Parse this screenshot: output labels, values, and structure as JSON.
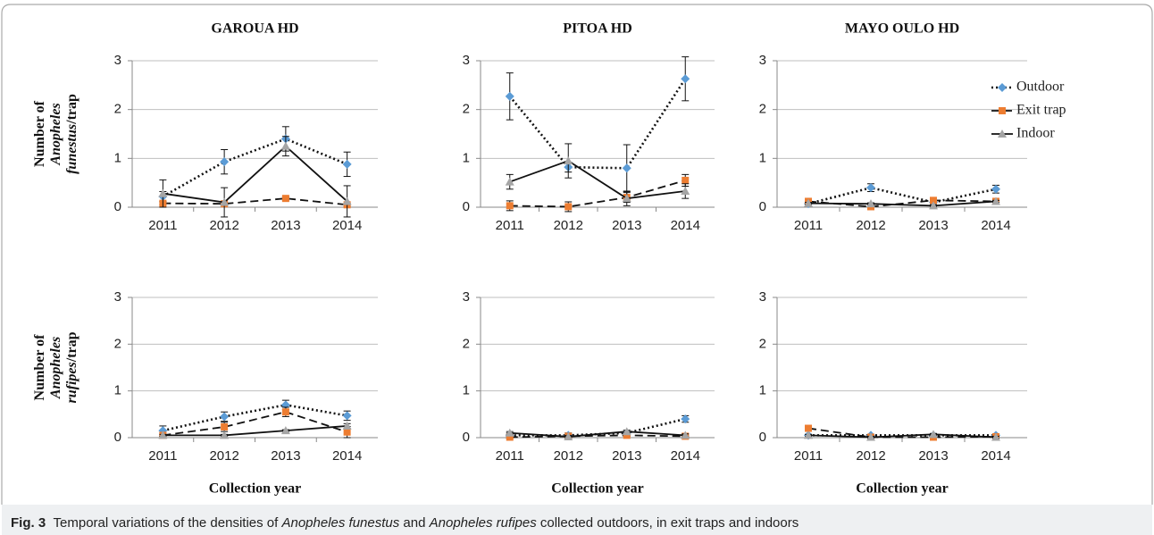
{
  "chart_data": [
    {
      "type": "line",
      "title": "GAROUA HD",
      "ylabel": [
        "Number of",
        "Anopheles",
        "funestus",
        "/trap"
      ],
      "categories": [
        "2011",
        "2012",
        "2013",
        "2014"
      ],
      "ylim": [
        0,
        3
      ],
      "yticks": [
        0,
        1,
        2,
        3
      ],
      "grid": true,
      "series": [
        {
          "color": "#5b9bd5",
          "marker": "diamond",
          "line_style": "dotted",
          "values": [
            0.22,
            0.93,
            1.4,
            0.88
          ],
          "errors": [
            0.1,
            0.25,
            0.25,
            0.25
          ]
        },
        {
          "color": "#ed7d31",
          "marker": "square",
          "line_style": "dashed",
          "values": [
            0.08,
            0.07,
            0.18,
            0.05
          ],
          "errors": [
            0.03,
            0.03,
            0.03,
            0.03
          ]
        },
        {
          "color": "#a5a5a5",
          "marker": "triangle",
          "line_style": "solid",
          "values": [
            0.28,
            0.1,
            1.25,
            0.12
          ],
          "errors": [
            0.28,
            0.3,
            0.2,
            0.32
          ]
        }
      ]
    },
    {
      "type": "line",
      "title": "PITOA HD",
      "categories": [
        "2011",
        "2012",
        "2013",
        "2014"
      ],
      "ylim": [
        0,
        3
      ],
      "yticks": [
        0,
        1,
        2,
        3
      ],
      "grid": true,
      "series": [
        {
          "color": "#5b9bd5",
          "marker": "diamond",
          "line_style": "dotted",
          "values": [
            2.27,
            0.82,
            0.8,
            2.63
          ],
          "errors": [
            0.48,
            0.1,
            0.48,
            0.45
          ]
        },
        {
          "color": "#ed7d31",
          "marker": "square",
          "line_style": "dashed",
          "values": [
            0.03,
            0.01,
            0.2,
            0.55
          ],
          "errors": [
            0.1,
            0.1,
            0.1,
            0.12
          ]
        },
        {
          "color": "#a5a5a5",
          "marker": "triangle",
          "line_style": "solid",
          "values": [
            0.52,
            0.95,
            0.18,
            0.33
          ],
          "errors": [
            0.15,
            0.35,
            0.15,
            0.15
          ]
        }
      ]
    },
    {
      "type": "line",
      "title": "MAYO OULO HD",
      "legend": "upper right",
      "categories": [
        "2011",
        "2012",
        "2013",
        "2014"
      ],
      "ylim": [
        0,
        3
      ],
      "yticks": [
        0,
        1,
        2,
        3
      ],
      "grid": true,
      "series": [
        {
          "name": "Outdoor",
          "color": "#5b9bd5",
          "marker": "diamond",
          "line_style": "dotted",
          "values": [
            0.07,
            0.4,
            0.1,
            0.37
          ],
          "errors": [
            0.02,
            0.08,
            0.05,
            0.08
          ]
        },
        {
          "name": "Exit trap",
          "color": "#ed7d31",
          "marker": "square",
          "line_style": "dashed",
          "values": [
            0.12,
            0.01,
            0.14,
            0.12
          ],
          "errors": [
            0.02,
            0.02,
            0.05,
            0.02
          ]
        },
        {
          "name": "Indoor",
          "color": "#a5a5a5",
          "marker": "triangle",
          "line_style": "solid",
          "values": [
            0.08,
            0.07,
            0.03,
            0.12
          ],
          "errors": [
            0.02,
            0.02,
            0.02,
            0.02
          ]
        }
      ]
    },
    {
      "type": "line",
      "ylabel": [
        "Number of",
        "Anopheles",
        "rufipes",
        "/trap"
      ],
      "xlabel": "Collection year",
      "categories": [
        "2011",
        "2012",
        "2013",
        "2014"
      ],
      "ylim": [
        0,
        3
      ],
      "yticks": [
        0,
        1,
        2,
        3
      ],
      "grid": true,
      "series": [
        {
          "color": "#5b9bd5",
          "marker": "diamond",
          "line_style": "dotted",
          "values": [
            0.15,
            0.45,
            0.7,
            0.47
          ],
          "errors": [
            0.1,
            0.1,
            0.1,
            0.1
          ]
        },
        {
          "color": "#ed7d31",
          "marker": "square",
          "line_style": "dashed",
          "values": [
            0.05,
            0.23,
            0.55,
            0.12
          ],
          "errors": [
            0.05,
            0.1,
            0.1,
            0.12
          ]
        },
        {
          "color": "#a5a5a5",
          "marker": "triangle",
          "line_style": "solid",
          "values": [
            0.05,
            0.05,
            0.15,
            0.25
          ],
          "errors": [
            0.02,
            0.02,
            0.02,
            0.05
          ]
        }
      ]
    },
    {
      "type": "line",
      "xlabel": "Collection year",
      "categories": [
        "2011",
        "2012",
        "2013",
        "2014"
      ],
      "ylim": [
        0,
        3
      ],
      "yticks": [
        0,
        1,
        2,
        3
      ],
      "grid": true,
      "series": [
        {
          "color": "#5b9bd5",
          "marker": "diamond",
          "line_style": "dotted",
          "values": [
            0.05,
            0.05,
            0.1,
            0.4
          ],
          "errors": [
            0.05,
            0.05,
            0.03,
            0.07
          ]
        },
        {
          "color": "#ed7d31",
          "marker": "square",
          "line_style": "dashed",
          "values": [
            0.01,
            0.03,
            0.05,
            0.03
          ],
          "errors": [
            0.02,
            0.02,
            0.02,
            0.02
          ]
        },
        {
          "color": "#a5a5a5",
          "marker": "triangle",
          "line_style": "solid",
          "values": [
            0.1,
            0.02,
            0.13,
            0.05
          ],
          "errors": [
            0.03,
            0.03,
            0.03,
            0.03
          ]
        }
      ]
    },
    {
      "type": "line",
      "xlabel": "Collection year",
      "categories": [
        "2011",
        "2012",
        "2013",
        "2014"
      ],
      "ylim": [
        0,
        3
      ],
      "yticks": [
        0,
        1,
        2,
        3
      ],
      "grid": true,
      "series": [
        {
          "color": "#5b9bd5",
          "marker": "diamond",
          "line_style": "dotted",
          "values": [
            0.05,
            0.05,
            0.05,
            0.05
          ],
          "errors": [
            0.02,
            0.02,
            0.02,
            0.02
          ]
        },
        {
          "color": "#ed7d31",
          "marker": "square",
          "line_style": "dashed",
          "values": [
            0.2,
            0.01,
            0.01,
            0.02
          ],
          "errors": [
            0.02,
            0.02,
            0.02,
            0.02
          ]
        },
        {
          "color": "#a5a5a5",
          "marker": "triangle",
          "line_style": "solid",
          "values": [
            0.05,
            0.01,
            0.07,
            0.01
          ],
          "errors": [
            0.02,
            0.02,
            0.02,
            0.02
          ]
        }
      ]
    }
  ],
  "caption": {
    "label": "Fig. 3",
    "parts": [
      "Temporal variations of the densities of ",
      "Anopheles funestus",
      " and ",
      "Anopheles rufipes",
      " collected outdoors, in exit traps and indoors"
    ]
  }
}
